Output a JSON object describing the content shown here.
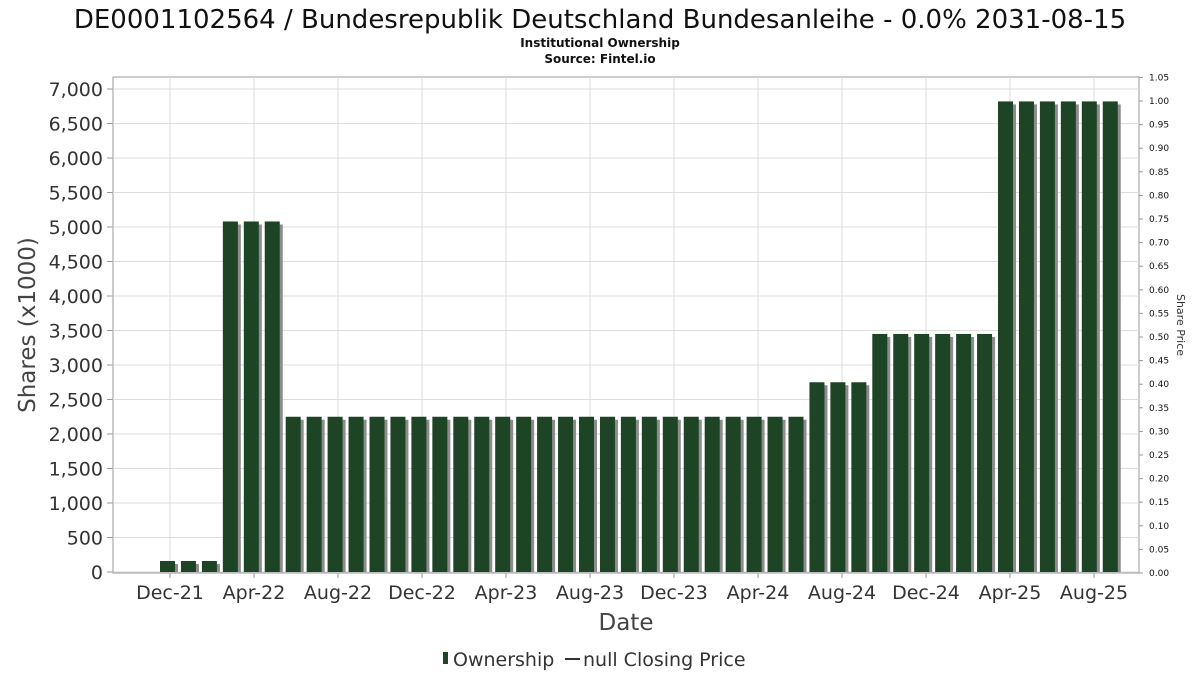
{
  "chart_data": {
    "type": "bar",
    "title": "DE0001102564 / Bundesrepublik Deutschland Bundesanleihe - 0.0% 2031-08-15",
    "subtitle_1": "Institutional Ownership",
    "subtitle_2": "Source: Fintel.io",
    "xlabel": "Date",
    "ylabel": "Shares (x1000)",
    "y2label": "Share Price",
    "ylim": [
      0,
      7200
    ],
    "y2lim": [
      0,
      1.05
    ],
    "grid": true,
    "legend_position": "bottom-center",
    "yticks": [
      "0",
      "500",
      "1,000",
      "1,500",
      "2,000",
      "2,500",
      "3,000",
      "3,500",
      "4,000",
      "4,500",
      "5,000",
      "5,500",
      "6,000",
      "6,500",
      "7,000"
    ],
    "y2ticks": [
      "0.00",
      "0.05",
      "0.10",
      "0.15",
      "0.20",
      "0.25",
      "0.30",
      "0.35",
      "0.40",
      "0.45",
      "0.50",
      "0.55",
      "0.60",
      "0.65",
      "0.70",
      "0.75",
      "0.80",
      "0.85",
      "0.90",
      "0.95",
      "1.00",
      "1.05"
    ],
    "xticks": [
      "Dec-21",
      "Apr-22",
      "Aug-22",
      "Dec-22",
      "Apr-23",
      "Aug-23",
      "Dec-23",
      "Apr-24",
      "Aug-24",
      "Dec-24",
      "Apr-25",
      "Aug-25"
    ],
    "series": [
      {
        "name": "Ownership",
        "values": [
          160,
          160,
          160,
          5080,
          5080,
          5080,
          2250,
          2250,
          2250,
          2250,
          2250,
          2250,
          2250,
          2250,
          2250,
          2250,
          2250,
          2250,
          2250,
          2250,
          2250,
          2250,
          2250,
          2250,
          2250,
          2250,
          2250,
          2250,
          2250,
          2250,
          2250,
          2750,
          2750,
          2750,
          3450,
          3450,
          3450,
          3450,
          3450,
          3450,
          6820,
          6820,
          6820,
          6820,
          6820,
          6820
        ],
        "color": "#1e4426"
      }
    ],
    "legend": {
      "ownership_label": "Ownership",
      "price_label": "null Closing Price"
    }
  }
}
